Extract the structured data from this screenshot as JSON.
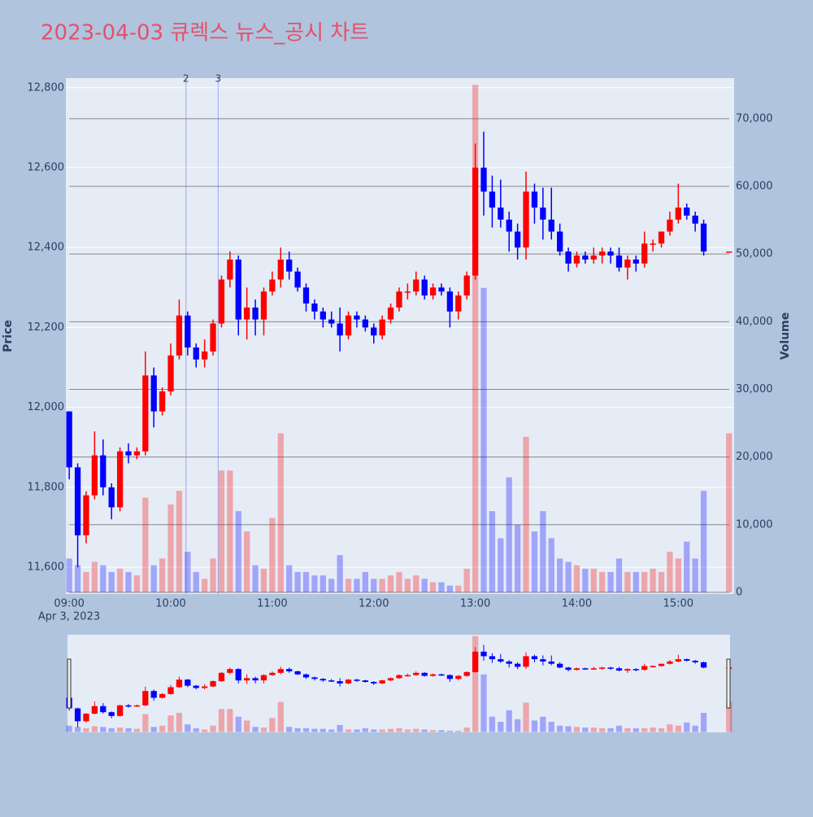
{
  "chart_data": {
    "type": "candlestick",
    "title": "2023-04-03 큐렉스 뉴스_공시 차트",
    "x": [
      "09:00",
      "09:05",
      "09:10",
      "09:15",
      "09:20",
      "09:25",
      "09:30",
      "09:35",
      "09:40",
      "09:45",
      "09:50",
      "09:55",
      "10:00",
      "10:05",
      "10:10",
      "10:15",
      "10:20",
      "10:25",
      "10:30",
      "10:35",
      "10:40",
      "10:45",
      "10:50",
      "10:55",
      "11:00",
      "11:05",
      "11:10",
      "11:15",
      "11:20",
      "11:25",
      "11:30",
      "11:35",
      "11:40",
      "11:45",
      "11:50",
      "11:55",
      "12:00",
      "12:05",
      "12:10",
      "12:15",
      "12:20",
      "12:25",
      "12:30",
      "12:35",
      "12:40",
      "12:45",
      "12:50",
      "12:55",
      "13:00",
      "13:05",
      "13:10",
      "13:15",
      "13:20",
      "13:25",
      "13:30",
      "13:35",
      "13:40",
      "13:45",
      "13:50",
      "13:55",
      "14:00",
      "14:05",
      "14:10",
      "14:15",
      "14:20",
      "14:25",
      "14:30",
      "14:35",
      "14:40",
      "14:45",
      "14:50",
      "14:55",
      "15:00",
      "15:05",
      "15:10",
      "15:15",
      "15:30"
    ],
    "open": [
      11990,
      11850,
      11680,
      11780,
      11880,
      11800,
      11750,
      11890,
      11880,
      11890,
      12080,
      11990,
      12040,
      12130,
      12230,
      12150,
      12120,
      12140,
      12210,
      12320,
      12370,
      12220,
      12250,
      12220,
      12290,
      12320,
      12370,
      12340,
      12300,
      12260,
      12240,
      12220,
      12210,
      12180,
      12230,
      12220,
      12200,
      12180,
      12220,
      12250,
      12290,
      12290,
      12320,
      12280,
      12300,
      12290,
      12240,
      12280,
      12330,
      12600,
      12540,
      12500,
      12470,
      12440,
      12400,
      12540,
      12500,
      12470,
      12440,
      12390,
      12360,
      12380,
      12370,
      12380,
      12390,
      12380,
      12350,
      12370,
      12360,
      12410,
      12410,
      12440,
      12470,
      12500,
      12480,
      12460,
      12390
    ],
    "high": [
      11990,
      11860,
      11790,
      11940,
      11920,
      11810,
      11900,
      11910,
      11900,
      12140,
      12100,
      12050,
      12160,
      12270,
      12240,
      12160,
      12170,
      12220,
      12330,
      12390,
      12380,
      12300,
      12270,
      12300,
      12340,
      12400,
      12390,
      12350,
      12310,
      12270,
      12250,
      12240,
      12250,
      12240,
      12240,
      12230,
      12210,
      12230,
      12260,
      12300,
      12310,
      12340,
      12330,
      12310,
      12310,
      12300,
      12290,
      12340,
      12660,
      12690,
      12580,
      12570,
      12490,
      12460,
      12590,
      12560,
      12550,
      12550,
      12460,
      12400,
      12390,
      12390,
      12400,
      12400,
      12400,
      12400,
      12380,
      12380,
      12440,
      12420,
      12440,
      12490,
      12560,
      12510,
      12490,
      12470,
      12390
    ],
    "low": [
      11820,
      11600,
      11660,
      11770,
      11780,
      11720,
      11740,
      11860,
      11870,
      11880,
      11950,
      11980,
      12030,
      12120,
      12130,
      12100,
      12100,
      12130,
      12200,
      12300,
      12180,
      12170,
      12180,
      12180,
      12280,
      12300,
      12320,
      12290,
      12240,
      12220,
      12200,
      12200,
      12140,
      12170,
      12200,
      12190,
      12160,
      12170,
      12210,
      12240,
      12270,
      12280,
      12270,
      12270,
      12280,
      12200,
      12220,
      12270,
      12320,
      12480,
      12450,
      12450,
      12390,
      12370,
      12370,
      12460,
      12420,
      12420,
      12380,
      12340,
      12350,
      12360,
      12360,
      12360,
      12360,
      12340,
      12320,
      12340,
      12350,
      12390,
      12400,
      12430,
      12460,
      12470,
      12440,
      12380,
      12390
    ],
    "close": [
      11850,
      11680,
      11780,
      11880,
      11800,
      11750,
      11890,
      11880,
      11890,
      12080,
      11990,
      12040,
      12130,
      12230,
      12150,
      12120,
      12140,
      12210,
      12320,
      12370,
      12220,
      12250,
      12220,
      12290,
      12320,
      12370,
      12340,
      12300,
      12260,
      12240,
      12220,
      12210,
      12180,
      12230,
      12220,
      12200,
      12180,
      12220,
      12250,
      12290,
      12290,
      12320,
      12280,
      12300,
      12290,
      12240,
      12280,
      12330,
      12600,
      12540,
      12500,
      12470,
      12440,
      12400,
      12540,
      12500,
      12470,
      12440,
      12390,
      12360,
      12380,
      12370,
      12380,
      12390,
      12380,
      12350,
      12370,
      12360,
      12410,
      12410,
      12440,
      12470,
      12500,
      12480,
      12460,
      12390,
      12390
    ],
    "volume": [
      5000,
      4000,
      3000,
      4500,
      4000,
      3000,
      3500,
      3000,
      2500,
      14000,
      4000,
      5000,
      13000,
      15000,
      6000,
      3000,
      2000,
      5000,
      18000,
      18000,
      12000,
      9000,
      4000,
      3500,
      11000,
      23500,
      4000,
      3000,
      3000,
      2500,
      2500,
      2000,
      5500,
      2000,
      2000,
      3000,
      2000,
      2000,
      2500,
      3000,
      2000,
      2500,
      2000,
      1500,
      1500,
      1000,
      1000,
      3500,
      75000,
      45000,
      12000,
      8000,
      17000,
      10000,
      23000,
      9000,
      12000,
      8000,
      5000,
      4500,
      4000,
      3500,
      3500,
      3000,
      3000,
      5000,
      3000,
      3000,
      3000,
      3500,
      3000,
      6000,
      5000,
      7500,
      5000,
      15000,
      23500
    ],
    "increasing_color": "#ff0000",
    "decreasing_color": "#0000ff",
    "volume_opacity": 0.3,
    "xlim": [
      "08:58",
      "15:33"
    ],
    "xticks": [
      "09:00",
      "10:00",
      "11:00",
      "12:00",
      "13:00",
      "14:00",
      "15:00"
    ],
    "x_date_label": "Apr 3, 2023",
    "ylim": [
      11533,
      12824
    ],
    "yticks": [
      {
        "value": 11600,
        "label": "11,600"
      },
      {
        "value": 11800,
        "label": "11,800"
      },
      {
        "value": 12000,
        "label": "12,000"
      },
      {
        "value": 12200,
        "label": "12,200"
      },
      {
        "value": 12400,
        "label": "12,400"
      },
      {
        "value": 12600,
        "label": "12,600"
      },
      {
        "value": 12800,
        "label": "12,800"
      }
    ],
    "y2lim": [
      -250,
      76000
    ],
    "y2ticks": [
      0,
      {
        "value": 10000,
        "label": "10,000"
      },
      {
        "value": 20000,
        "label": "20,000"
      },
      {
        "value": 30000,
        "label": "30,000"
      },
      {
        "value": 40000,
        "label": "40,000"
      },
      {
        "value": 50000,
        "label": "50,000"
      },
      {
        "value": 60000,
        "label": "60,000"
      },
      {
        "value": 70000,
        "label": "70,000"
      }
    ],
    "ylabel": "Price",
    "y2label": "Volume",
    "annotations": [
      {
        "x": "10:09",
        "text": "2"
      },
      {
        "x": "10:28",
        "text": "3"
      }
    ],
    "rangeslider": true
  }
}
